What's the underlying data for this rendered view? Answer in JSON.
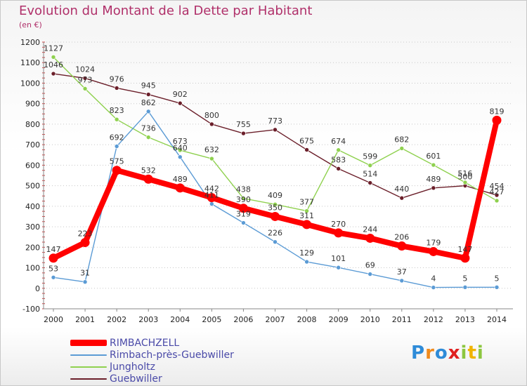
{
  "chart_data": {
    "type": "line",
    "title": "Evolution du Montant de la Dette par Habitant",
    "subtitle": "(en €)",
    "xlabel": "",
    "ylabel": "",
    "ylim": [
      -100,
      1200
    ],
    "yticks": [
      "-100",
      "0",
      "100",
      "200",
      "300",
      "400",
      "500",
      "600",
      "700",
      "800",
      "900",
      "1000",
      "1100",
      "1200"
    ],
    "x": [
      "2000",
      "2001",
      "2002",
      "2003",
      "2004",
      "2005",
      "2006",
      "2007",
      "2008",
      "2009",
      "2010",
      "2011",
      "2012",
      "2013",
      "2014"
    ],
    "series": [
      {
        "name": "Guebwiller",
        "color": "#6b1f2a",
        "values": [
          1046,
          1024,
          976,
          945,
          902,
          800,
          755,
          773,
          675,
          583,
          514,
          440,
          489,
          500,
          454
        ]
      },
      {
        "name": "Jungholtz",
        "color": "#8fd14f",
        "values": [
          1127,
          973,
          823,
          736,
          673,
          632,
          438,
          409,
          377,
          674,
          599,
          682,
          601,
          516,
          427
        ]
      },
      {
        "name": "Rimbach-près-Guebwiller",
        "color": "#5b9bd5",
        "values": [
          53,
          31,
          692,
          862,
          640,
          411,
          319,
          226,
          129,
          101,
          69,
          37,
          4,
          5,
          5
        ]
      },
      {
        "name": "RIMBACHZELL",
        "color": "#ff0000",
        "values": [
          147,
          223,
          575,
          532,
          489,
          442,
          390,
          350,
          311,
          270,
          244,
          206,
          179,
          147,
          819
        ]
      }
    ],
    "data_labels": {
      "Guebwiller": [
        "1046",
        "1024",
        "976",
        "945",
        "902",
        "800",
        "755",
        "773",
        "675",
        "583",
        "514",
        "440",
        "489",
        "500",
        ""
      ],
      "Jungholtz": [
        "1127",
        "973",
        "823",
        "736",
        "673",
        "632",
        "438",
        "409",
        "377",
        "674",
        "599",
        "682",
        "601",
        "516",
        "427"
      ],
      "Rimbach-près-Guebwiller": [
        "53",
        "31",
        "692",
        "862",
        "640",
        "411",
        "319",
        "226",
        "129",
        "101",
        "69",
        "37",
        "4",
        "5",
        "5"
      ],
      "RIMBACHZELL": [
        "147",
        "223",
        "575",
        "532",
        "489",
        "442",
        "390",
        "350",
        "311",
        "270",
        "244",
        "206",
        "179",
        "147",
        "819"
      ]
    },
    "extra_label": "454",
    "legend_position": "bottom-left",
    "legend": [
      {
        "name": "RIMBACHZELL",
        "color": "#ff0000"
      },
      {
        "name": "Rimbach-près-Guebwiller",
        "color": "#5b9bd5"
      },
      {
        "name": "Jungholtz",
        "color": "#8fd14f"
      },
      {
        "name": "Guebwiller",
        "color": "#6b1f2a"
      }
    ]
  },
  "logo": {
    "letters": [
      "P",
      "r",
      "o",
      "x",
      "i",
      "t",
      "i"
    ],
    "colors": [
      "#2e8bd8",
      "#f08a1c",
      "#2e8bd8",
      "#e02020",
      "#8cc63f",
      "#f0b400",
      "#8cc63f"
    ]
  }
}
